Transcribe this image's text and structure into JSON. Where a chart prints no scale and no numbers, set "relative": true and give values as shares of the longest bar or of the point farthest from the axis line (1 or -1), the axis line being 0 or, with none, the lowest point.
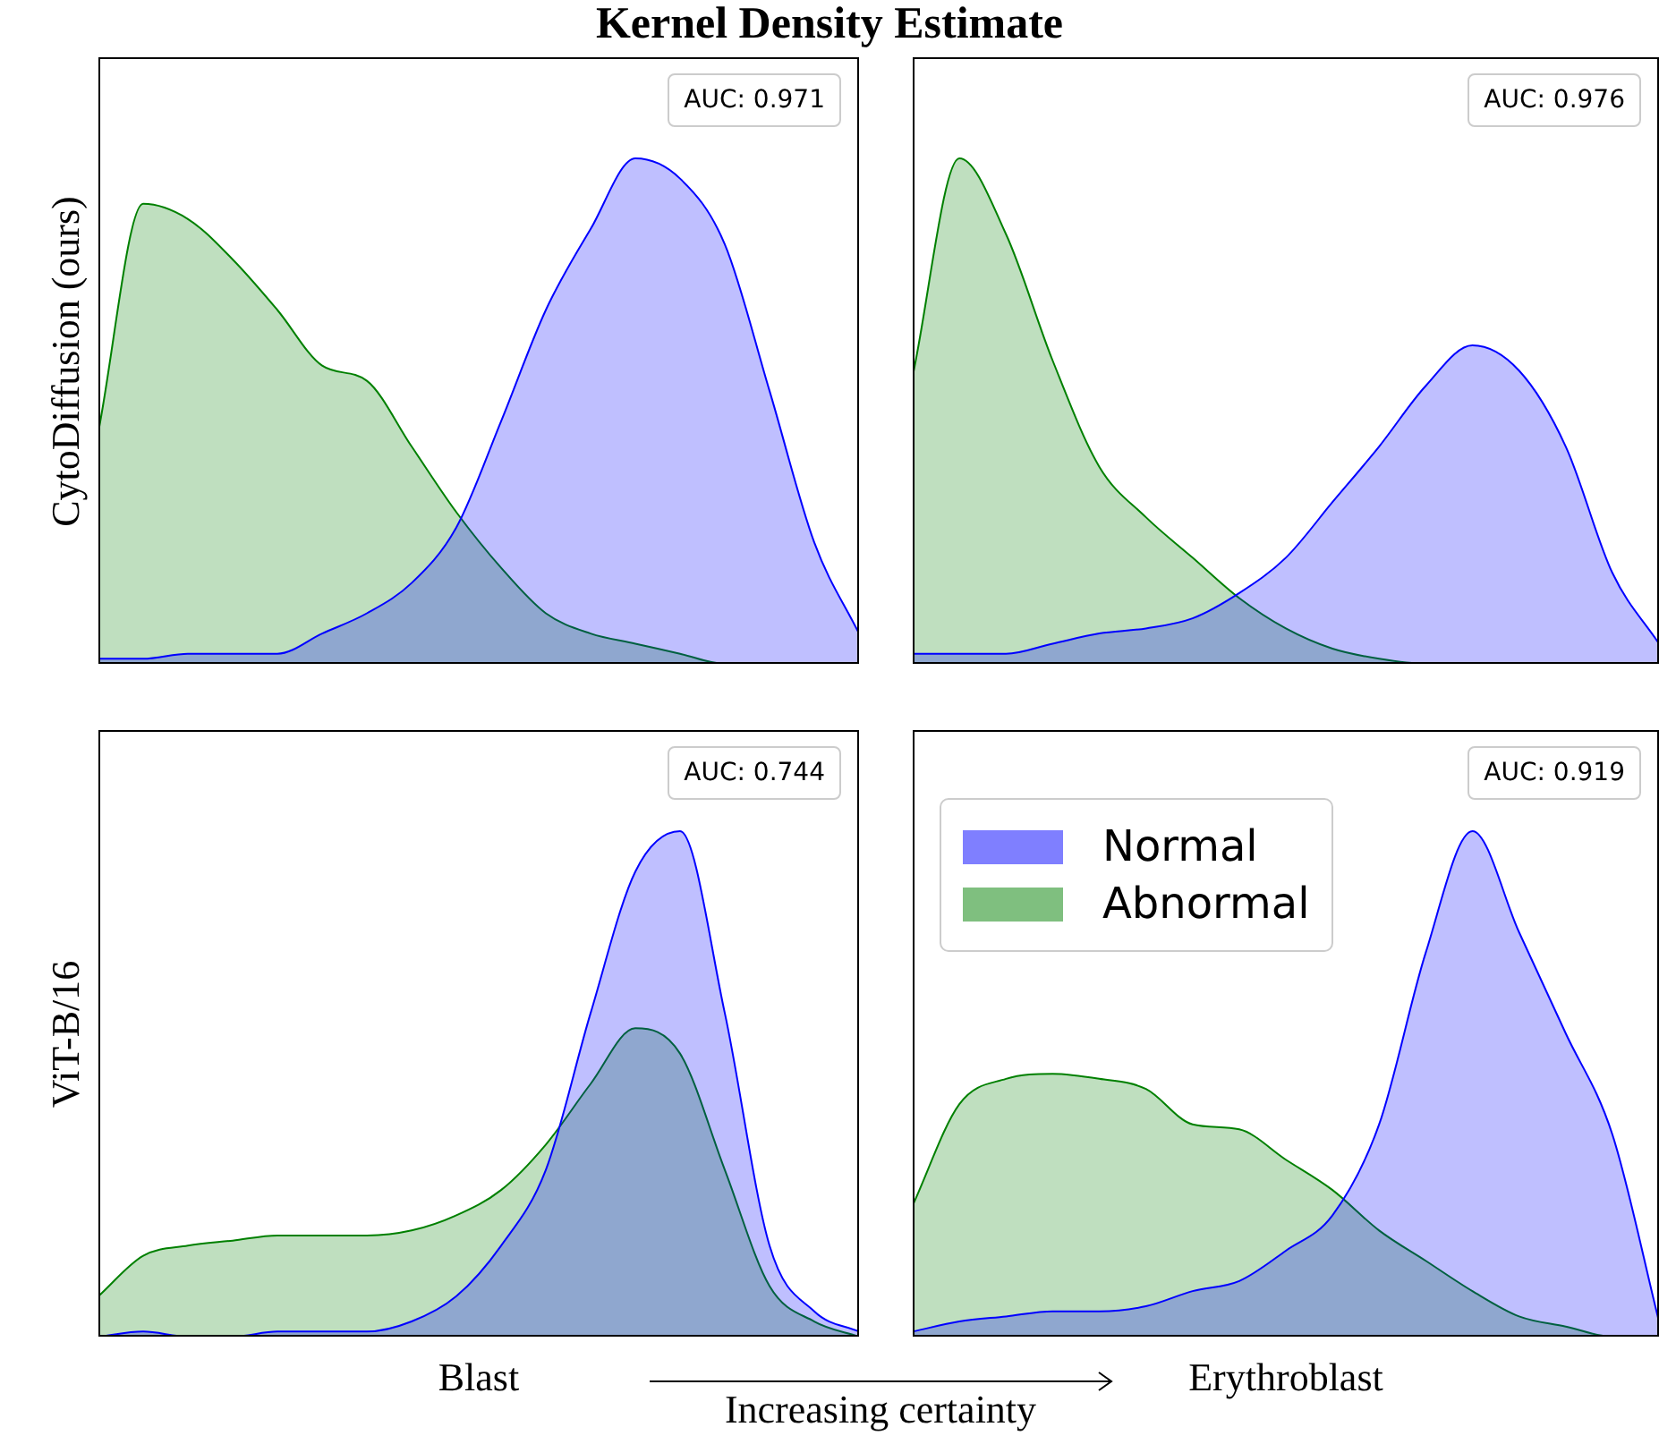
{
  "chart_data": [
    {
      "type": "area",
      "title": "Kernel Density Estimate",
      "ylabel": "CytoDiffusion (ours)",
      "relative": true,
      "annotations": [
        "AUC: 0.971"
      ],
      "categories": [
        null,
        null,
        null,
        null,
        null,
        null,
        null,
        null,
        null,
        null,
        null,
        null,
        null,
        null,
        null,
        null,
        null,
        null
      ],
      "series": [
        {
          "color": "#0000ff",
          "values": [
            0.01,
            0.01,
            0.02,
            0.02,
            0.02,
            0.06,
            0.1,
            0.16,
            0.27,
            0.48,
            0.7,
            0.86,
            1,
            0.96,
            0.83,
            0.54,
            0.24,
            0.06
          ]
        },
        {
          "color": "#008000",
          "values": [
            0.46,
            0.91,
            0.88,
            0.8,
            0.7,
            0.59,
            0.56,
            0.43,
            0.3,
            0.19,
            0.1,
            0.06,
            0.04,
            0.02,
            0,
            0,
            0,
            0
          ]
        }
      ]
    },
    {
      "type": "area",
      "relative": true,
      "annotations": [
        "AUC: 0.976"
      ],
      "categories": [
        null,
        null,
        null,
        null,
        null,
        null,
        null,
        null,
        null,
        null,
        null,
        null,
        null,
        null,
        null,
        null,
        null
      ],
      "series": [
        {
          "color": "#0000ff",
          "values": [
            0.02,
            0.02,
            0.02,
            0.04,
            0.06,
            0.07,
            0.09,
            0.14,
            0.21,
            0.32,
            0.43,
            0.55,
            0.63,
            0.58,
            0.43,
            0.18,
            0.04
          ]
        },
        {
          "color": "#008000",
          "values": [
            0.57,
            1,
            0.85,
            0.6,
            0.39,
            0.29,
            0.21,
            0.13,
            0.07,
            0.03,
            0.01,
            0,
            0,
            0,
            0,
            0,
            0
          ]
        }
      ]
    },
    {
      "type": "area",
      "ylabel": "ViT-B/16",
      "xlabel": "Blast",
      "relative": true,
      "annotations": [
        "AUC: 0.744",
        "Increasing certainty"
      ],
      "categories": [
        null,
        null,
        null,
        null,
        null,
        null,
        null,
        null,
        null,
        null,
        null,
        null,
        null,
        null,
        null,
        null,
        null,
        null
      ],
      "series": [
        {
          "color": "#0000ff",
          "values": [
            0,
            0.01,
            0,
            0,
            0.01,
            0.01,
            0.01,
            0.03,
            0.08,
            0.18,
            0.33,
            0.64,
            0.92,
            1,
            0.64,
            0.18,
            0.05,
            0.01
          ]
        },
        {
          "color": "#008000",
          "values": [
            0.08,
            0.16,
            0.18,
            0.19,
            0.2,
            0.2,
            0.2,
            0.21,
            0.24,
            0.29,
            0.38,
            0.5,
            0.61,
            0.56,
            0.33,
            0.1,
            0.03,
            0
          ]
        }
      ]
    },
    {
      "type": "area",
      "xlabel": "Erythroblast",
      "relative": true,
      "legend": "top left",
      "annotations": [
        "AUC: 0.919"
      ],
      "categories": [
        null,
        null,
        null,
        null,
        null,
        null,
        null,
        null,
        null,
        null,
        null,
        null,
        null,
        null,
        null,
        null,
        null
      ],
      "series": [
        {
          "name": "Normal",
          "color": "#0000ff",
          "values": [
            0.01,
            0.03,
            0.04,
            0.05,
            0.05,
            0.06,
            0.09,
            0.11,
            0.17,
            0.24,
            0.42,
            0.76,
            1,
            0.8,
            0.6,
            0.4,
            0.03
          ]
        },
        {
          "name": "Abnormal",
          "color": "#008000",
          "values": [
            0.26,
            0.46,
            0.51,
            0.52,
            0.51,
            0.49,
            0.42,
            0.41,
            0.35,
            0.29,
            0.21,
            0.15,
            0.09,
            0.04,
            0.02,
            0,
            0
          ]
        }
      ]
    }
  ]
}
